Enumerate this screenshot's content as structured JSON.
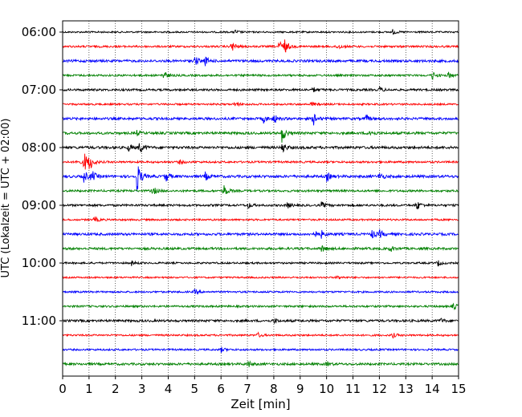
{
  "chart_data": {
    "type": "line",
    "title": "",
    "xlabel": "Zeit  [min]",
    "ylabel": "UTC (Lokalzeit = UTC + 02:00)",
    "xlim": [
      0,
      15
    ],
    "x_ticks": [
      "0",
      "1",
      "2",
      "3",
      "4",
      "5",
      "6",
      "7",
      "8",
      "9",
      "10",
      "11",
      "12",
      "13",
      "14",
      "15"
    ],
    "y_ticks": [
      "06:00",
      "07:00",
      "08:00",
      "09:00",
      "10:00",
      "11:00"
    ],
    "grid": "vertical dotted",
    "trace_interval_min": 15,
    "trace_colors": [
      "#000000",
      "#ff0000",
      "#0000ff",
      "#008000"
    ],
    "traces": [
      {
        "start": "06:00",
        "color": "#000000",
        "base": 1.0,
        "events": [
          [
            6.5,
            3
          ],
          [
            12.5,
            3
          ]
        ]
      },
      {
        "start": "06:15",
        "color": "#ff0000",
        "base": 1.2,
        "events": [
          [
            6.4,
            7
          ],
          [
            8.2,
            9
          ],
          [
            8.4,
            8
          ],
          [
            10.4,
            4
          ]
        ]
      },
      {
        "start": "06:30",
        "color": "#0000ff",
        "base": 1.5,
        "events": [
          [
            5.0,
            6
          ],
          [
            5.4,
            5
          ]
        ]
      },
      {
        "start": "06:45",
        "color": "#008000",
        "base": 1.2,
        "events": [
          [
            3.8,
            7
          ],
          [
            14.0,
            5
          ],
          [
            14.6,
            4
          ]
        ]
      },
      {
        "start": "07:00",
        "color": "#000000",
        "base": 1.3,
        "events": [
          [
            9.5,
            3
          ],
          [
            12.0,
            3
          ]
        ]
      },
      {
        "start": "07:15",
        "color": "#ff0000",
        "base": 1.1,
        "events": [
          [
            6.5,
            4
          ],
          [
            9.4,
            3
          ]
        ]
      },
      {
        "start": "07:30",
        "color": "#0000ff",
        "base": 1.5,
        "events": [
          [
            7.6,
            5
          ],
          [
            8.0,
            6
          ],
          [
            9.5,
            8
          ],
          [
            11.5,
            4
          ]
        ]
      },
      {
        "start": "07:45",
        "color": "#008000",
        "base": 1.5,
        "events": [
          [
            8.3,
            12
          ],
          [
            2.8,
            3
          ],
          [
            11.6,
            5
          ]
        ]
      },
      {
        "start": "08:00",
        "color": "#000000",
        "base": 1.6,
        "events": [
          [
            2.9,
            8
          ],
          [
            8.3,
            8
          ],
          [
            2.5,
            4
          ]
        ]
      },
      {
        "start": "08:15",
        "color": "#ff0000",
        "base": 1.2,
        "events": [
          [
            0.8,
            14
          ],
          [
            1.0,
            10
          ],
          [
            0.5,
            4
          ],
          [
            4.4,
            3
          ]
        ]
      },
      {
        "start": "08:30",
        "color": "#0000ff",
        "base": 1.6,
        "events": [
          [
            0.8,
            8
          ],
          [
            1.1,
            7
          ],
          [
            2.8,
            22
          ],
          [
            3.9,
            7
          ],
          [
            5.4,
            5
          ],
          [
            10.0,
            6
          ],
          [
            12.0,
            5
          ]
        ]
      },
      {
        "start": "08:45",
        "color": "#008000",
        "base": 1.3,
        "events": [
          [
            3.4,
            6
          ],
          [
            6.1,
            8
          ]
        ]
      },
      {
        "start": "09:00",
        "color": "#000000",
        "base": 1.3,
        "events": [
          [
            7.0,
            4
          ],
          [
            8.5,
            4
          ],
          [
            9.8,
            4
          ],
          [
            13.4,
            7
          ]
        ]
      },
      {
        "start": "09:15",
        "color": "#ff0000",
        "base": 1.1,
        "events": [
          [
            1.2,
            4
          ]
        ]
      },
      {
        "start": "09:30",
        "color": "#0000ff",
        "base": 1.5,
        "events": [
          [
            9.5,
            5
          ],
          [
            9.8,
            4
          ],
          [
            11.7,
            6
          ],
          [
            12.0,
            5
          ]
        ]
      },
      {
        "start": "09:45",
        "color": "#008000",
        "base": 1.4,
        "events": [
          [
            9.8,
            5
          ],
          [
            12.4,
            4
          ]
        ]
      },
      {
        "start": "10:00",
        "color": "#000000",
        "base": 1.1,
        "events": [
          [
            2.6,
            3
          ],
          [
            14.2,
            4
          ]
        ]
      },
      {
        "start": "10:15",
        "color": "#ff0000",
        "base": 1.0,
        "events": [
          [
            10.4,
            3
          ]
        ]
      },
      {
        "start": "10:30",
        "color": "#0000ff",
        "base": 1.1,
        "events": [
          [
            5.0,
            3
          ]
        ]
      },
      {
        "start": "10:45",
        "color": "#008000",
        "base": 1.2,
        "events": [
          [
            14.8,
            4
          ]
        ]
      },
      {
        "start": "11:00",
        "color": "#000000",
        "base": 1.4,
        "events": [
          [
            8.0,
            3
          ],
          [
            14.3,
            3
          ]
        ]
      },
      {
        "start": "11:15",
        "color": "#ff0000",
        "base": 1.1,
        "events": [
          [
            7.4,
            3
          ],
          [
            12.5,
            3
          ]
        ]
      },
      {
        "start": "11:30",
        "color": "#0000ff",
        "base": 1.1,
        "events": [
          [
            6.0,
            3
          ]
        ]
      },
      {
        "start": "11:45",
        "color": "#008000",
        "base": 1.4,
        "events": [
          [
            7.0,
            5
          ],
          [
            10.0,
            3
          ]
        ]
      }
    ]
  }
}
